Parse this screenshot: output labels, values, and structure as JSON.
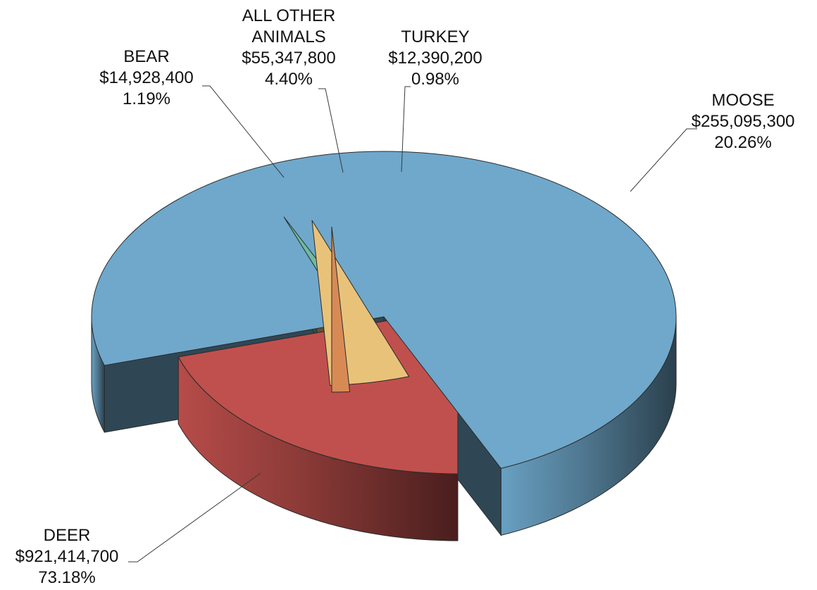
{
  "chart_data": {
    "type": "pie",
    "style": "3d-exploded",
    "slices": [
      {
        "label": "MOOSE",
        "label_lines": [
          "MOOSE"
        ],
        "value": 255095300,
        "value_text": "$255,095,300",
        "percent_text": "20.26%",
        "color": "#C0504D"
      },
      {
        "label": "DEER",
        "label_lines": [
          "DEER"
        ],
        "value": 921414700,
        "value_text": "$921,414,700",
        "percent_text": "73.18%",
        "color": "#6FA8CB"
      },
      {
        "label": "BEAR",
        "label_lines": [
          "BEAR"
        ],
        "value": 14928400,
        "value_text": "$14,928,400",
        "percent_text": "1.19%",
        "color": "#6DBBA2"
      },
      {
        "label": "ALL OTHER ANIMALS",
        "label_lines": [
          "ALL OTHER",
          "ANIMALS"
        ],
        "value": 55347800,
        "value_text": "$55,347,800",
        "percent_text": "4.40%",
        "color": "#E9C27A"
      },
      {
        "label": "TURKEY",
        "label_lines": [
          "TURKEY"
        ],
        "value": 12390200,
        "value_text": "$12,390,200",
        "percent_text": "0.98%",
        "color": "#D88A55"
      }
    ]
  }
}
